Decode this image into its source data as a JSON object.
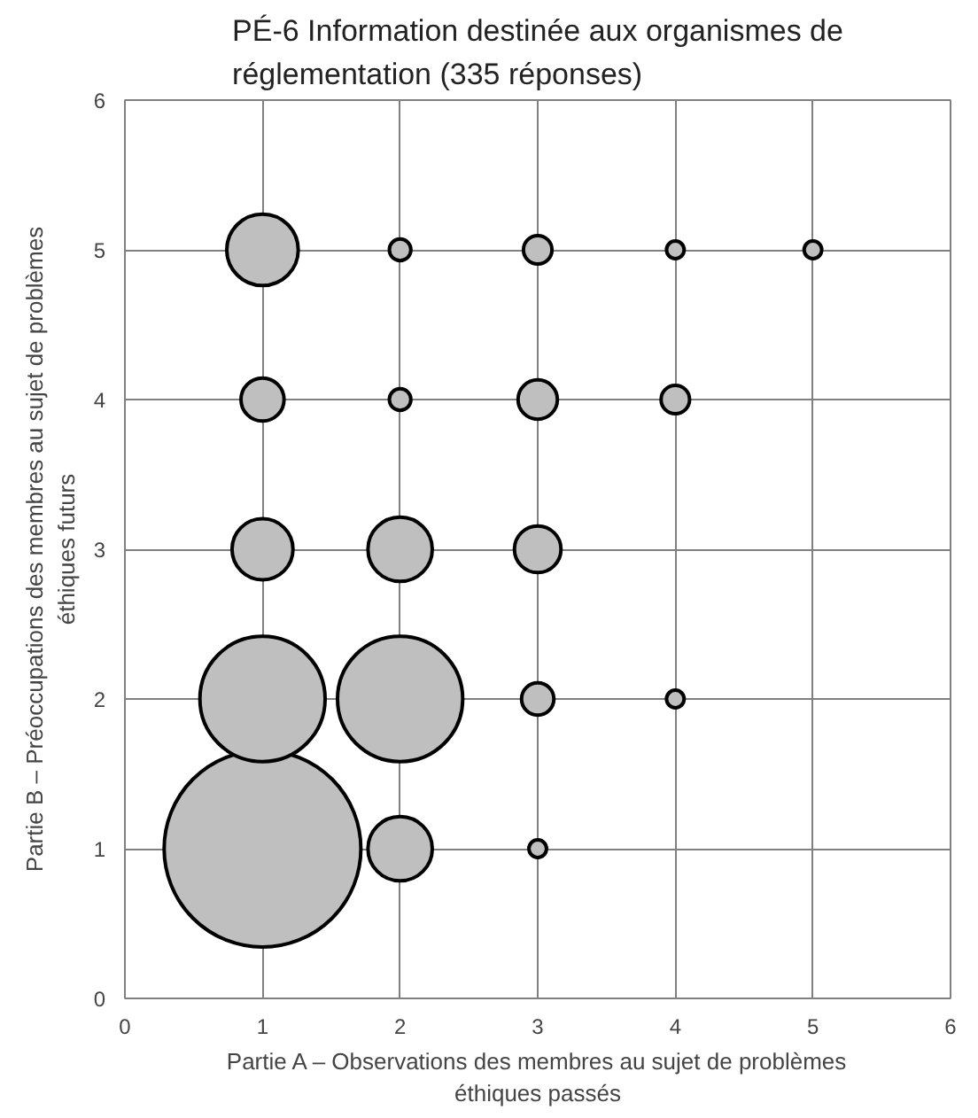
{
  "chart_data": {
    "type": "bubble",
    "title": "PÉ-6 Information destinée aux organismes de réglementation (335 réponses)",
    "xlabel": "Partie A – Observations des membres au sujet de problèmes éthiques passés",
    "ylabel": "Partie B – Préoccupations des membres au sujet de problèmes éthiques futurs",
    "x": [
      1,
      2,
      3,
      1,
      2,
      3,
      4,
      1,
      2,
      3,
      1,
      2,
      3,
      4,
      1,
      2,
      3,
      4,
      5
    ],
    "values": [
      1,
      1,
      1,
      2,
      2,
      2,
      2,
      3,
      3,
      3,
      4,
      4,
      4,
      4,
      5,
      5,
      5,
      5,
      5
    ],
    "sizes": [
      1,
      0.107,
      0.008,
      0.405,
      0.405,
      0.027,
      0.008,
      0.096,
      0.107,
      0.056,
      0.048,
      0.012,
      0.04,
      0.021,
      0.132,
      0.012,
      0.021,
      0.008,
      0.008
    ],
    "color": "#bfbfbf",
    "xlim": [
      0,
      6
    ],
    "ylim": [
      0,
      6
    ],
    "xticks": [
      0,
      1,
      2,
      3,
      4,
      5,
      6
    ],
    "yticks": [
      0,
      1,
      2,
      3,
      4,
      5,
      6
    ],
    "grid": true
  }
}
